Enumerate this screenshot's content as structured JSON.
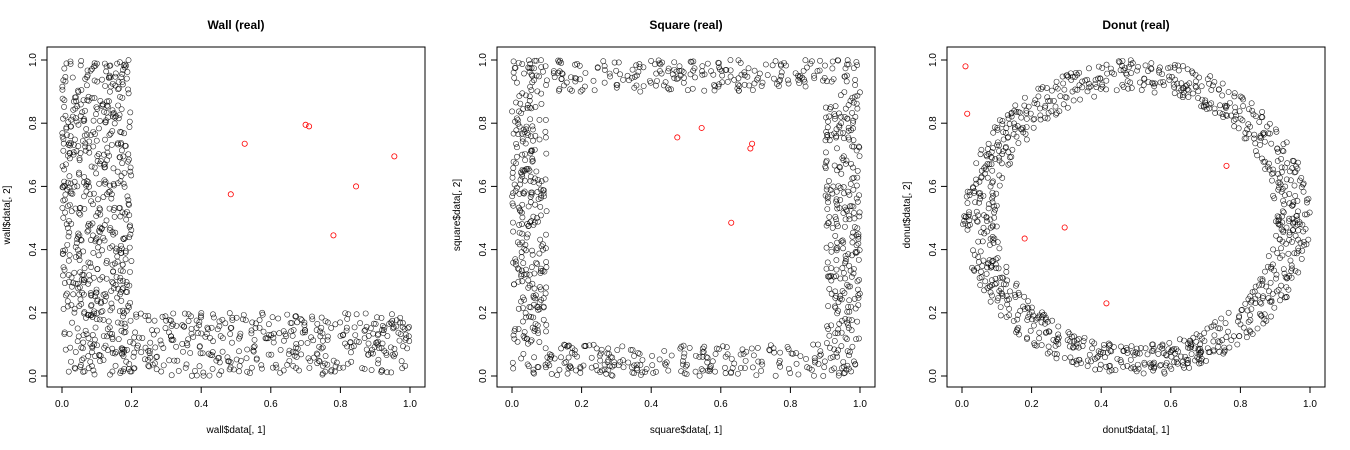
{
  "chart_data": [
    {
      "type": "scatter",
      "title": "Wall (real)",
      "xlabel": "wall$data[, 1]",
      "ylabel": "wall$data[, 2]",
      "xlim": [
        0,
        1
      ],
      "ylim": [
        0,
        1
      ],
      "xticks": [
        "0.0",
        "0.2",
        "0.4",
        "0.6",
        "0.8",
        "1.0"
      ],
      "yticks": [
        "0.0",
        "0.2",
        "0.4",
        "0.6",
        "0.8",
        "1.0"
      ],
      "grid": false,
      "shape": "wall",
      "point_count": 1000,
      "point_color": "#000000",
      "highlight_color": "#ff0000",
      "highlight_points": [
        [
          0.525,
          0.735
        ],
        [
          0.7,
          0.795
        ],
        [
          0.71,
          0.79
        ],
        [
          0.955,
          0.695
        ],
        [
          0.485,
          0.575
        ],
        [
          0.845,
          0.6
        ],
        [
          0.78,
          0.445
        ]
      ]
    },
    {
      "type": "scatter",
      "title": "Square (real)",
      "xlabel": "square$data[, 1]",
      "ylabel": "square$data[, 2]",
      "xlim": [
        0,
        1
      ],
      "ylim": [
        0,
        1
      ],
      "xticks": [
        "0.0",
        "0.2",
        "0.4",
        "0.6",
        "0.8",
        "1.0"
      ],
      "yticks": [
        "0.0",
        "0.2",
        "0.4",
        "0.6",
        "0.8",
        "1.0"
      ],
      "grid": false,
      "shape": "square",
      "point_count": 1000,
      "point_color": "#000000",
      "highlight_color": "#ff0000",
      "highlight_points": [
        [
          0.475,
          0.755
        ],
        [
          0.545,
          0.785
        ],
        [
          0.69,
          0.735
        ],
        [
          0.685,
          0.72
        ],
        [
          0.63,
          0.485
        ]
      ]
    },
    {
      "type": "scatter",
      "title": "Donut (real)",
      "xlabel": "donut$data[, 1]",
      "ylabel": "donut$data[, 2]",
      "xlim": [
        0,
        1
      ],
      "ylim": [
        0,
        1
      ],
      "xticks": [
        "0.0",
        "0.2",
        "0.4",
        "0.6",
        "0.8",
        "1.0"
      ],
      "yticks": [
        "0.0",
        "0.2",
        "0.4",
        "0.6",
        "0.8",
        "1.0"
      ],
      "grid": false,
      "shape": "donut",
      "point_count": 1000,
      "point_color": "#000000",
      "highlight_color": "#ff0000",
      "highlight_points": [
        [
          0.01,
          0.98
        ],
        [
          0.015,
          0.83
        ],
        [
          0.76,
          0.665
        ],
        [
          0.18,
          0.435
        ],
        [
          0.295,
          0.47
        ],
        [
          0.415,
          0.23
        ]
      ]
    }
  ]
}
